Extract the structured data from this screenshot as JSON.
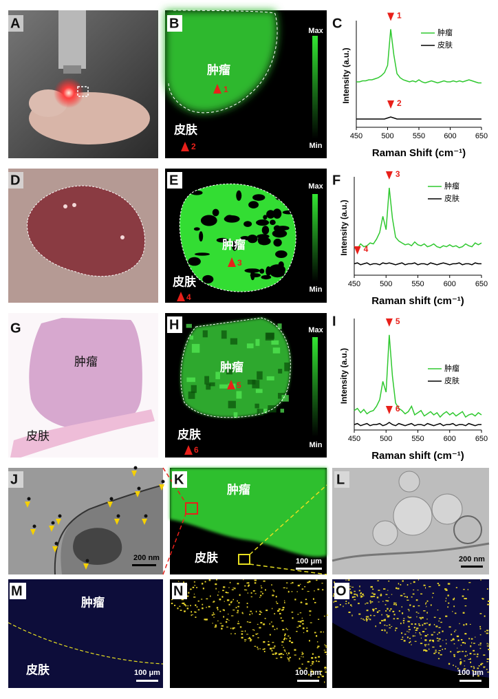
{
  "panel_labels": [
    "A",
    "B",
    "C",
    "D",
    "E",
    "F",
    "G",
    "H",
    "I",
    "J",
    "K",
    "L",
    "M",
    "N",
    "O"
  ],
  "images": {
    "B": {
      "tumor": "肿瘤",
      "skin": "皮肤",
      "max": "Max",
      "min": "Min",
      "markers": [
        "1",
        "2"
      ]
    },
    "E": {
      "tumor": "肿瘤",
      "skin": "皮肤",
      "max": "Max",
      "min": "Min",
      "markers": [
        "3",
        "4"
      ]
    },
    "G": {
      "tumor": "肿瘤",
      "skin": "皮肤"
    },
    "H": {
      "tumor": "肿瘤",
      "skin": "皮肤",
      "max": "Max",
      "min": "Min",
      "markers": [
        "5",
        "6"
      ]
    },
    "J": {
      "scale": "200 nm"
    },
    "K": {
      "tumor": "肿瘤",
      "skin": "皮肤",
      "scale": "100 μm"
    },
    "L": {
      "scale": "200 nm"
    },
    "M": {
      "tumor": "肿瘤",
      "skin": "皮肤",
      "scale": "100 μm"
    },
    "N": {
      "scale": "100 μm"
    },
    "O": {
      "scale": "100 μm"
    }
  },
  "chart_data": [
    {
      "type": "line",
      "xlabel": "Raman Shift (cm⁻¹)",
      "ylabel": "Intensity (a.u.)",
      "x": [
        450,
        455,
        460,
        465,
        470,
        475,
        480,
        485,
        490,
        495,
        500,
        505,
        510,
        515,
        520,
        525,
        530,
        535,
        540,
        545,
        550,
        555,
        560,
        565,
        570,
        575,
        580,
        585,
        590,
        595,
        600,
        605,
        610,
        615,
        620,
        625,
        630,
        635,
        640,
        645,
        650
      ],
      "xlim": [
        450,
        650
      ],
      "xticks": [
        450,
        500,
        550,
        600,
        650
      ],
      "ylim": [
        0,
        100
      ],
      "series": [
        {
          "name": "肿瘤",
          "color": "#2ec82e",
          "values": [
            44,
            44,
            45,
            45,
            46,
            46,
            47,
            48,
            50,
            53,
            60,
            95,
            70,
            52,
            48,
            46,
            45,
            44,
            45,
            44,
            46,
            44,
            43,
            44,
            45,
            44,
            43,
            44,
            45,
            44,
            44,
            45,
            44,
            45,
            44,
            45,
            46,
            45,
            44,
            43,
            43
          ]
        },
        {
          "name": "皮肤",
          "color": "#000000",
          "values": [
            8,
            8,
            8,
            8,
            8,
            8,
            8,
            8,
            8,
            8,
            9,
            10,
            9,
            8,
            8,
            8,
            8,
            8,
            8,
            8,
            8,
            8,
            8,
            8,
            8,
            8,
            8,
            8,
            8,
            8,
            8,
            8,
            8,
            8,
            8,
            8,
            8,
            8,
            8,
            8,
            8
          ]
        }
      ],
      "annotations": [
        "1",
        "2"
      ]
    },
    {
      "type": "line",
      "xlabel": "Raman shift (cm⁻¹)",
      "ylabel": "Intensity (a.u.)",
      "x": [
        450,
        455,
        460,
        465,
        470,
        475,
        480,
        485,
        490,
        495,
        500,
        505,
        510,
        515,
        520,
        525,
        530,
        535,
        540,
        545,
        550,
        555,
        560,
        565,
        570,
        575,
        580,
        585,
        590,
        595,
        600,
        605,
        610,
        615,
        620,
        625,
        630,
        635,
        640,
        645,
        650
      ],
      "xlim": [
        450,
        650
      ],
      "xticks": [
        450,
        500,
        550,
        600,
        650
      ],
      "ylim": [
        0,
        100
      ],
      "series": [
        {
          "name": "肿瘤",
          "color": "#2ec82e",
          "values": [
            30,
            28,
            33,
            30,
            31,
            34,
            33,
            38,
            45,
            62,
            48,
            92,
            60,
            40,
            36,
            34,
            32,
            33,
            31,
            35,
            32,
            31,
            33,
            30,
            31,
            33,
            30,
            29,
            31,
            30,
            32,
            30,
            31,
            29,
            30,
            33,
            31,
            30,
            34,
            32,
            34
          ]
        },
        {
          "name": "皮肤",
          "color": "#000000",
          "values": [
            12,
            13,
            11,
            12,
            13,
            11,
            12,
            12,
            11,
            13,
            12,
            13,
            12,
            11,
            12,
            13,
            11,
            12,
            12,
            13,
            11,
            12,
            12,
            11,
            13,
            12,
            11,
            12,
            13,
            12,
            11,
            12,
            12,
            13,
            11,
            12,
            12,
            11,
            13,
            12,
            12
          ]
        }
      ],
      "annotations": [
        "3",
        "4"
      ]
    },
    {
      "type": "line",
      "xlabel": "Raman shift (cm⁻¹)",
      "ylabel": "Intensity (a.u.)",
      "x": [
        450,
        455,
        460,
        465,
        470,
        475,
        480,
        485,
        490,
        495,
        500,
        505,
        510,
        515,
        520,
        525,
        530,
        535,
        540,
        545,
        550,
        555,
        560,
        565,
        570,
        575,
        580,
        585,
        590,
        595,
        600,
        605,
        610,
        615,
        620,
        625,
        630,
        635,
        640,
        645,
        650
      ],
      "xlim": [
        450,
        650
      ],
      "xticks": [
        450,
        500,
        550,
        600,
        650
      ],
      "ylim": [
        0,
        100
      ],
      "series": [
        {
          "name": "肿瘤",
          "color": "#2ec82e",
          "values": [
            18,
            20,
            16,
            19,
            15,
            17,
            18,
            22,
            28,
            45,
            35,
            88,
            50,
            25,
            20,
            18,
            15,
            17,
            22,
            14,
            16,
            18,
            13,
            15,
            17,
            14,
            16,
            12,
            15,
            17,
            14,
            16,
            13,
            15,
            17,
            12,
            14,
            15,
            13,
            16,
            14
          ]
        },
        {
          "name": "皮肤",
          "color": "#000000",
          "values": [
            5,
            6,
            4,
            5,
            6,
            4,
            5,
            5,
            6,
            4,
            5,
            7,
            5,
            4,
            6,
            5,
            4,
            5,
            6,
            4,
            5,
            5,
            4,
            6,
            5,
            4,
            5,
            6,
            4,
            5,
            5,
            6,
            4,
            5,
            5,
            4,
            6,
            5,
            4,
            5,
            5
          ]
        }
      ],
      "annotations": [
        "5",
        "6"
      ]
    }
  ]
}
